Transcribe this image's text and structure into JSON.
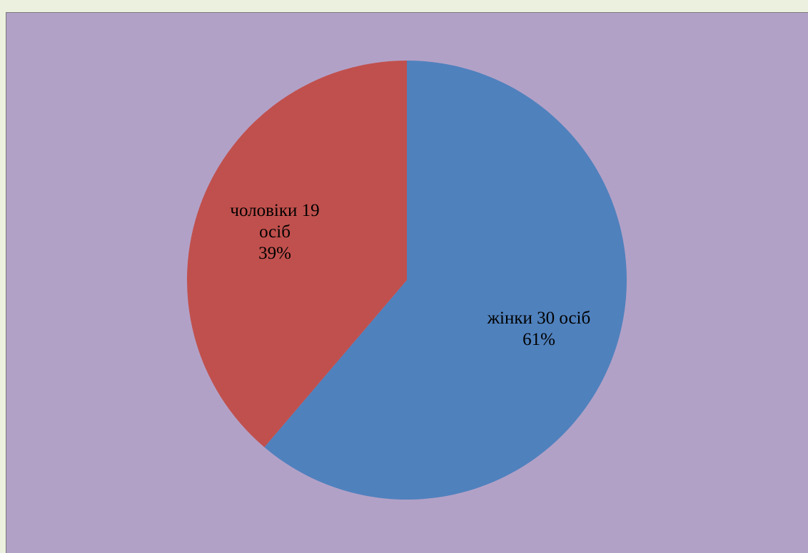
{
  "chart_data": {
    "type": "pie",
    "title": "",
    "start_angle_deg": 0,
    "direction": "clockwise",
    "slices": [
      {
        "label_lines": [
          "жінки 30 осіб",
          "61%"
        ],
        "value": 30,
        "percent": 61,
        "color": "#4f81bd"
      },
      {
        "label_lines": [
          "чоловіки 19",
          "осіб",
          "39%"
        ],
        "value": 19,
        "percent": 39,
        "color": "#c0504d"
      }
    ]
  },
  "colors": {
    "page_background": "#ebf1de",
    "plot_background": "#b2a1c7",
    "frame_border": "#7a7a7a"
  }
}
